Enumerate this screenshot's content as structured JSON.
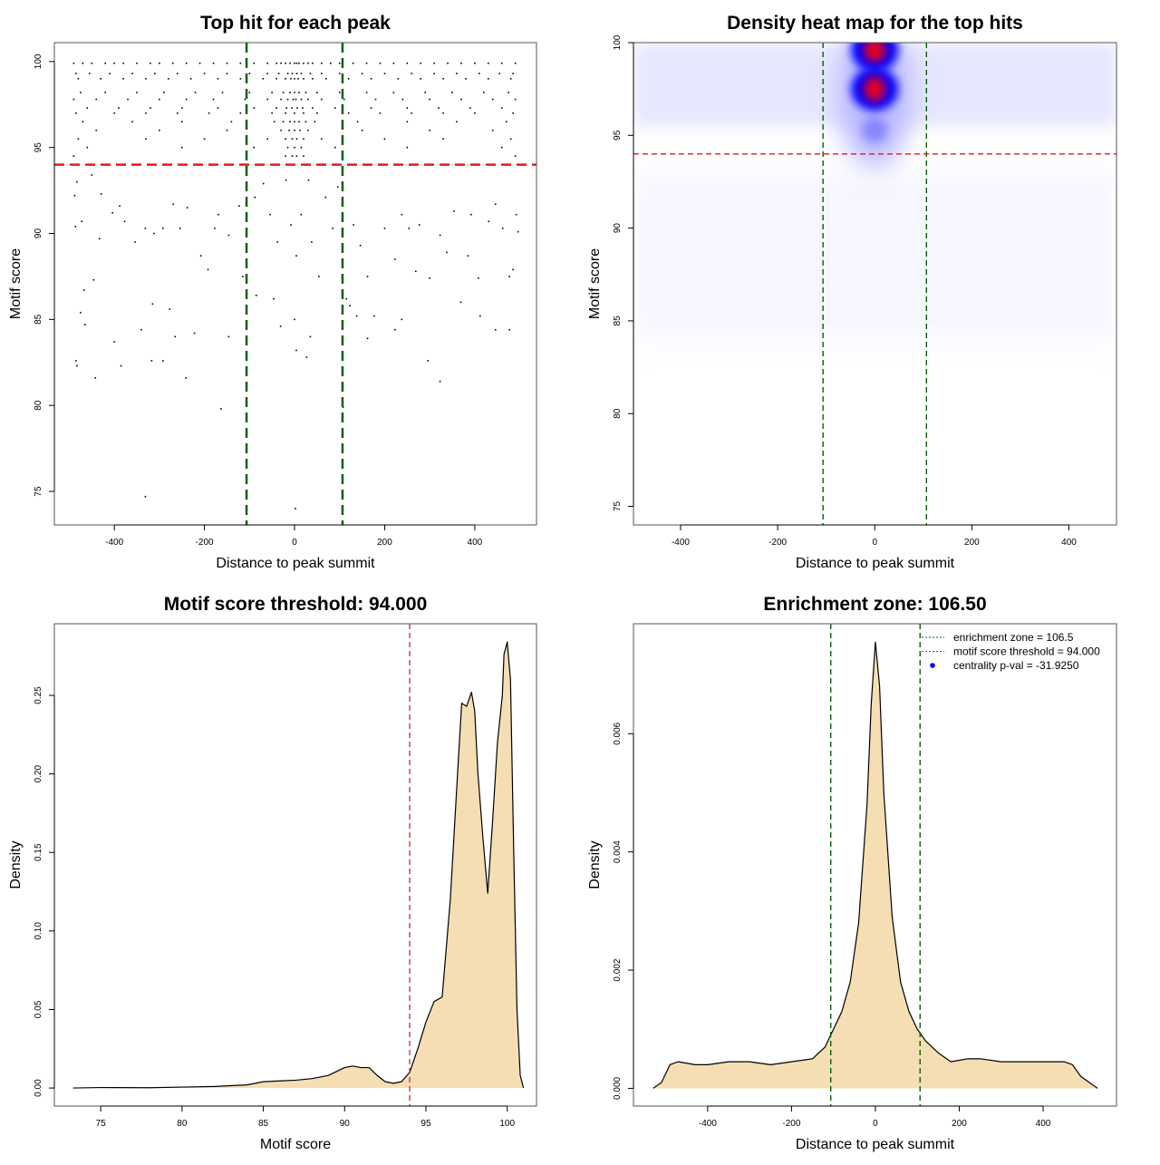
{
  "chart_data": [
    {
      "type": "scatter",
      "title": "Top hit for each peak",
      "xlabel": "Distance to peak summit",
      "ylabel": "Motif score",
      "xticks": [
        -400,
        -200,
        0,
        200,
        400
      ],
      "yticks": [
        75,
        80,
        85,
        90,
        95,
        100
      ],
      "xlim": [
        -533,
        537
      ],
      "ylim": [
        73.05,
        101.1
      ],
      "threshold_line": {
        "y": 94,
        "color": "#e31a1c"
      },
      "zone_lines": {
        "x": [
          -106.5,
          106.5
        ],
        "color": "#006400"
      },
      "points_low": [
        [
          -488,
          92.2
        ],
        [
          -483,
          93.0
        ],
        [
          -486,
          90.4
        ],
        [
          -472,
          90.7
        ],
        [
          -450,
          93.4
        ],
        [
          -429,
          92.3
        ],
        [
          -433,
          89.7
        ],
        [
          -446,
          87.3
        ],
        [
          -467,
          86.7
        ],
        [
          -475,
          85.4
        ],
        [
          -465,
          84.7
        ],
        [
          -485,
          82.6
        ],
        [
          -483,
          82.3
        ],
        [
          -442,
          81.6
        ],
        [
          -400,
          83.7
        ],
        [
          -385,
          82.3
        ],
        [
          -340,
          84.4
        ],
        [
          -317,
          82.6
        ],
        [
          -292,
          82.6
        ],
        [
          -331,
          74.7
        ],
        [
          -241,
          81.6
        ],
        [
          -222,
          84.2
        ],
        [
          -163,
          79.8
        ],
        [
          -146,
          84.0
        ],
        [
          -265,
          84.0
        ],
        [
          -277,
          85.6
        ],
        [
          -315,
          85.9
        ],
        [
          -404,
          91.2
        ],
        [
          -388,
          91.6
        ],
        [
          -377,
          90.7
        ],
        [
          -354,
          89.5
        ],
        [
          -331,
          90.3
        ],
        [
          -312,
          90.0
        ],
        [
          -292,
          90.3
        ],
        [
          -269,
          91.7
        ],
        [
          -254,
          90.3
        ],
        [
          -238,
          91.5
        ],
        [
          -208,
          88.7
        ],
        [
          -192,
          87.9
        ],
        [
          -177,
          90.3
        ],
        [
          -169,
          91.1
        ],
        [
          -146,
          89.9
        ],
        [
          -123,
          91.6
        ],
        [
          -115,
          87.5
        ],
        [
          -88,
          92.1
        ],
        [
          -69,
          92.9
        ],
        [
          -54,
          91.1
        ],
        [
          -38,
          89.5
        ],
        [
          -19,
          93.1
        ],
        [
          -8,
          90.5
        ],
        [
          4,
          88.7
        ],
        [
          15,
          91.1
        ],
        [
          31,
          93.1
        ],
        [
          38,
          89.5
        ],
        [
          54,
          87.5
        ],
        [
          69,
          92.1
        ],
        [
          85,
          90.3
        ],
        [
          96,
          92.7
        ],
        [
          -85,
          86.4
        ],
        [
          -46,
          86.2
        ],
        [
          -31,
          84.6
        ],
        [
          0,
          85.0
        ],
        [
          4,
          83.2
        ],
        [
          27,
          82.8
        ],
        [
          35,
          84.0
        ],
        [
          108,
          79.9
        ],
        [
          131,
          90.5
        ],
        [
          146,
          89.3
        ],
        [
          162,
          87.5
        ],
        [
          138,
          85.2
        ],
        [
          177,
          85.2
        ],
        [
          162,
          83.9
        ],
        [
          200,
          90.3
        ],
        [
          223,
          88.5
        ],
        [
          238,
          91.1
        ],
        [
          254,
          90.3
        ],
        [
          269,
          87.8
        ],
        [
          277,
          90.5
        ],
        [
          296,
          82.6
        ],
        [
          300,
          87.4
        ],
        [
          323,
          81.4
        ],
        [
          323,
          89.9
        ],
        [
          338,
          88.9
        ],
        [
          354,
          91.3
        ],
        [
          369,
          86.0
        ],
        [
          385,
          88.7
        ],
        [
          392,
          91.1
        ],
        [
          408,
          87.4
        ],
        [
          412,
          85.2
        ],
        [
          431,
          90.7
        ],
        [
          446,
          91.7
        ],
        [
          462,
          90.3
        ],
        [
          477,
          87.5
        ],
        [
          485,
          87.9
        ],
        [
          492,
          91.1
        ],
        [
          496,
          90.1
        ],
        [
          477,
          84.4
        ],
        [
          446,
          84.4
        ],
        [
          238,
          85.0
        ],
        [
          223,
          84.4
        ],
        [
          115,
          86.2
        ],
        [
          123,
          85.8
        ],
        [
          2,
          74.0
        ]
      ],
      "points_high_rows": [
        {
          "y": 99.9,
          "x": [
            -490,
            -470,
            -450,
            -420,
            -400,
            -380,
            -350,
            -320,
            -300,
            -270,
            -240,
            -210,
            -180,
            -150,
            -120,
            -90,
            -60,
            -40,
            -30,
            -20,
            -10,
            0,
            5,
            10,
            20,
            30,
            40,
            60,
            80,
            100,
            130,
            160,
            190,
            220,
            250,
            280,
            310,
            340,
            370,
            400,
            430,
            460,
            490
          ]
        },
        {
          "y": 99.3,
          "x": [
            -485,
            -455,
            -410,
            -360,
            -310,
            -260,
            -200,
            -150,
            -100,
            -60,
            -35,
            -15,
            -5,
            5,
            15,
            35,
            60,
            100,
            150,
            200,
            260,
            310,
            360,
            410,
            455,
            485
          ]
        },
        {
          "y": 99.0,
          "x": [
            -480,
            -430,
            -380,
            -330,
            -280,
            -230,
            -170,
            -120,
            -70,
            -40,
            -20,
            -8,
            0,
            8,
            20,
            40,
            70,
            120,
            170,
            230,
            280,
            330,
            380,
            430,
            480
          ]
        },
        {
          "y": 98.2,
          "x": [
            -475,
            -420,
            -350,
            -290,
            -220,
            -160,
            -100,
            -50,
            -25,
            -10,
            0,
            10,
            25,
            50,
            100,
            160,
            220,
            290,
            350,
            420,
            475
          ]
        },
        {
          "y": 97.8,
          "x": [
            -490,
            -440,
            -370,
            -300,
            -240,
            -180,
            -110,
            -60,
            -30,
            -15,
            -3,
            3,
            15,
            30,
            60,
            110,
            180,
            240,
            300,
            370,
            440,
            490
          ]
        },
        {
          "y": 97.3,
          "x": [
            -460,
            -390,
            -320,
            -250,
            -170,
            -90,
            -40,
            -18,
            -6,
            6,
            18,
            40,
            90,
            170,
            250,
            320,
            390,
            460
          ]
        },
        {
          "y": 97.0,
          "x": [
            -485,
            -400,
            -330,
            -260,
            -190,
            -120,
            -50,
            -20,
            0,
            20,
            50,
            120,
            190,
            260,
            330,
            400,
            485
          ]
        },
        {
          "y": 96.5,
          "x": [
            -470,
            -360,
            -250,
            -140,
            -45,
            -25,
            -10,
            0,
            10,
            25,
            45,
            140,
            250,
            360,
            470
          ]
        },
        {
          "y": 96.0,
          "x": [
            -440,
            -300,
            -150,
            -30,
            -12,
            0,
            12,
            30,
            150,
            300,
            440
          ]
        },
        {
          "y": 95.5,
          "x": [
            -480,
            -330,
            -200,
            -60,
            -20,
            -5,
            5,
            20,
            60,
            200,
            330,
            480
          ]
        },
        {
          "y": 95.0,
          "x": [
            -460,
            -250,
            -90,
            -15,
            0,
            15,
            90,
            250,
            460
          ]
        },
        {
          "y": 94.5,
          "x": [
            -490,
            -20,
            -5,
            5,
            20,
            490
          ]
        }
      ]
    },
    {
      "type": "heatmap",
      "title": "Density heat map for the top hits",
      "xlabel": "Distance to peak summit",
      "ylabel": "Motif score",
      "xticks": [
        -400,
        -200,
        0,
        200,
        400
      ],
      "yticks": [
        75,
        80,
        85,
        90,
        95,
        100
      ],
      "xlim": [
        -497,
        498
      ],
      "ylim": [
        74.0,
        100.0
      ],
      "colors": [
        "#ffffff",
        "#0000ff",
        "#ff0000"
      ],
      "threshold_line": {
        "y": 94,
        "color": "#e31a1c"
      },
      "zone_lines": {
        "x": [
          -106.5,
          106.5
        ],
        "color": "#006400"
      },
      "hotspots": [
        {
          "x": 0,
          "y": 99.6,
          "level": 1.0
        },
        {
          "x": 0,
          "y": 97.5,
          "level": 1.0
        },
        {
          "x": 0,
          "y": 95.3,
          "level": 0.4
        }
      ],
      "background_band": {
        "y": [
          95.5,
          100
        ],
        "level": 0.08
      }
    },
    {
      "type": "area",
      "title": "Motif score threshold: 94.000",
      "xlabel": "Motif score",
      "ylabel": "Density",
      "xticks": [
        75,
        80,
        85,
        90,
        95,
        100
      ],
      "yticks": [
        0.0,
        0.05,
        0.1,
        0.15,
        0.2,
        0.25
      ],
      "ytick_labels": [
        "0.00",
        "0.05",
        "0.10",
        "0.15",
        "0.20",
        "0.25"
      ],
      "xlim": [
        72.15,
        101.8
      ],
      "ylim": [
        -0.0115,
        0.2956
      ],
      "fill": "#f5deb3",
      "threshold_line": {
        "x": 94,
        "color": "#b22222"
      },
      "x": [
        73.3,
        75,
        78,
        80,
        82,
        84,
        85,
        86,
        87,
        88,
        89,
        90,
        90.5,
        91,
        91.5,
        92,
        92.5,
        93,
        93.5,
        94,
        94.5,
        95,
        95.5,
        96,
        96.5,
        97,
        97.2,
        97.5,
        97.8,
        98,
        98.2,
        98.5,
        98.8,
        99.1,
        99.4,
        99.7,
        99.8,
        100,
        100.2,
        100.4,
        100.6,
        100.8,
        101
      ],
      "y": [
        0,
        0.0003,
        0.0002,
        0.0006,
        0.001,
        0.002,
        0.004,
        0.0045,
        0.005,
        0.006,
        0.008,
        0.013,
        0.014,
        0.013,
        0.013,
        0.008,
        0.004,
        0.003,
        0.004,
        0.01,
        0.025,
        0.042,
        0.055,
        0.058,
        0.12,
        0.21,
        0.245,
        0.243,
        0.252,
        0.24,
        0.2,
        0.16,
        0.124,
        0.17,
        0.22,
        0.25,
        0.276,
        0.284,
        0.26,
        0.15,
        0.05,
        0.008,
        0
      ]
    },
    {
      "type": "area",
      "title": "Enrichment zone: 106.50",
      "xlabel": "Distance to peak summit",
      "ylabel": "Density",
      "xticks": [
        -400,
        -200,
        0,
        200,
        400
      ],
      "yticks": [
        0,
        0.002,
        0.004,
        0.006
      ],
      "ytick_labels": [
        "0.000",
        "0.002",
        "0.004",
        "0.006"
      ],
      "xlim": [
        -577,
        575
      ],
      "ylim": [
        -0.0003,
        0.00786
      ],
      "fill": "#f5deb3",
      "zone_lines": {
        "x": [
          -106.5,
          106.5
        ],
        "color": "#006400"
      },
      "x": [
        -530,
        -510,
        -490,
        -470,
        -430,
        -400,
        -350,
        -300,
        -250,
        -200,
        -150,
        -120,
        -100,
        -80,
        -60,
        -40,
        -20,
        -10,
        0,
        10,
        20,
        40,
        60,
        80,
        100,
        120,
        150,
        180,
        220,
        250,
        300,
        350,
        400,
        450,
        470,
        490,
        510,
        530
      ],
      "y": [
        0,
        0.0001,
        0.0004,
        0.00045,
        0.0004,
        0.0004,
        0.00045,
        0.00045,
        0.0004,
        0.00045,
        0.0005,
        0.0007,
        0.001,
        0.0013,
        0.0018,
        0.0028,
        0.0048,
        0.0065,
        0.00755,
        0.0068,
        0.005,
        0.0029,
        0.0018,
        0.0013,
        0.001,
        0.0008,
        0.0006,
        0.00045,
        0.0005,
        0.0005,
        0.00045,
        0.00045,
        0.00045,
        0.00045,
        0.0004,
        0.0002,
        0.0001,
        0
      ],
      "legend": {
        "position": "top-right",
        "entries": [
          {
            "label": "enrichment zone = 106.5",
            "color": "#006400",
            "symbol": "dotted-line"
          },
          {
            "label": "motif score threshold = 94.000",
            "color": "#e31a1c",
            "symbol": "dotted-line"
          },
          {
            "label": "centrality p-val = -31.9250",
            "color": "#0000ff",
            "symbol": "dot"
          }
        ]
      }
    }
  ]
}
